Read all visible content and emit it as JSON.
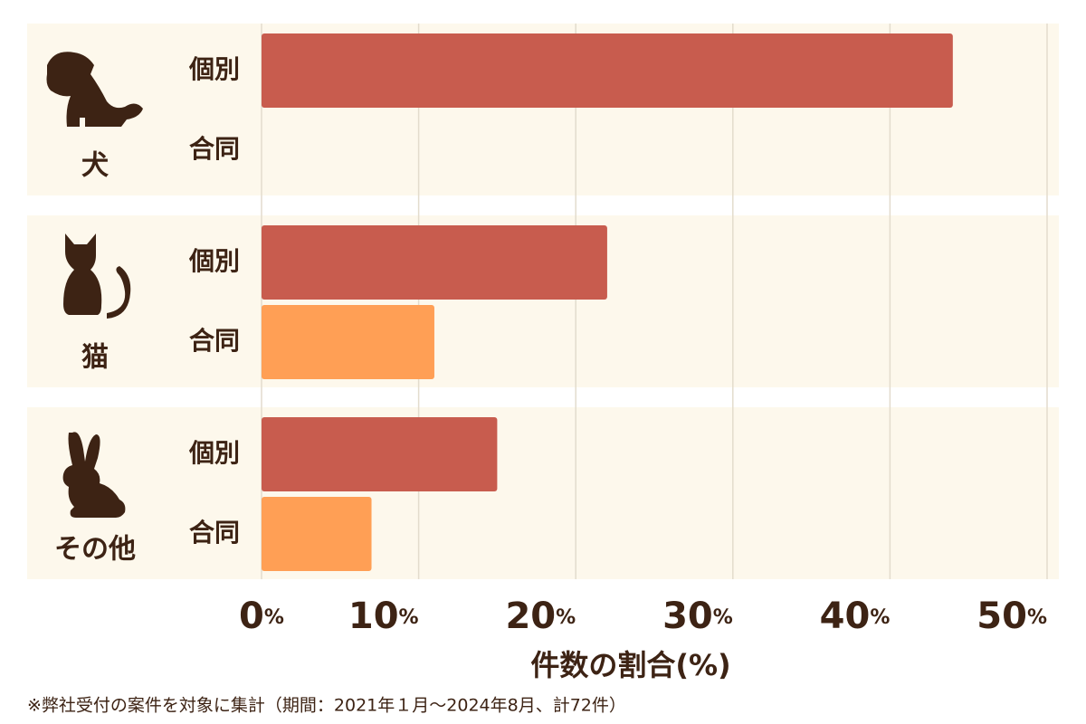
{
  "chart_data": {
    "type": "bar",
    "orientation": "horizontal",
    "categories": [
      "犬",
      "猫",
      "その他"
    ],
    "series": [
      {
        "name": "個別",
        "color": "#c85c4e",
        "values": [
          44,
          22,
          15
        ]
      },
      {
        "name": "合同",
        "color": "#ff9f55",
        "values": [
          0,
          11,
          7
        ]
      }
    ],
    "xlim": [
      0,
      50
    ],
    "xticks": [
      {
        "value": 0,
        "label": "0%"
      },
      {
        "value": 10,
        "label": "10%"
      },
      {
        "value": 20,
        "label": "20%"
      },
      {
        "value": 30,
        "label": "30%"
      },
      {
        "value": 40,
        "label": "40%"
      },
      {
        "value": 50,
        "label": "50%"
      }
    ],
    "xlabel": "件数の割合(%)",
    "grid": true,
    "footnote": "※弊社受付の案件を対象に集計（期間：2021年１月～2024年8月、計72件）"
  }
}
